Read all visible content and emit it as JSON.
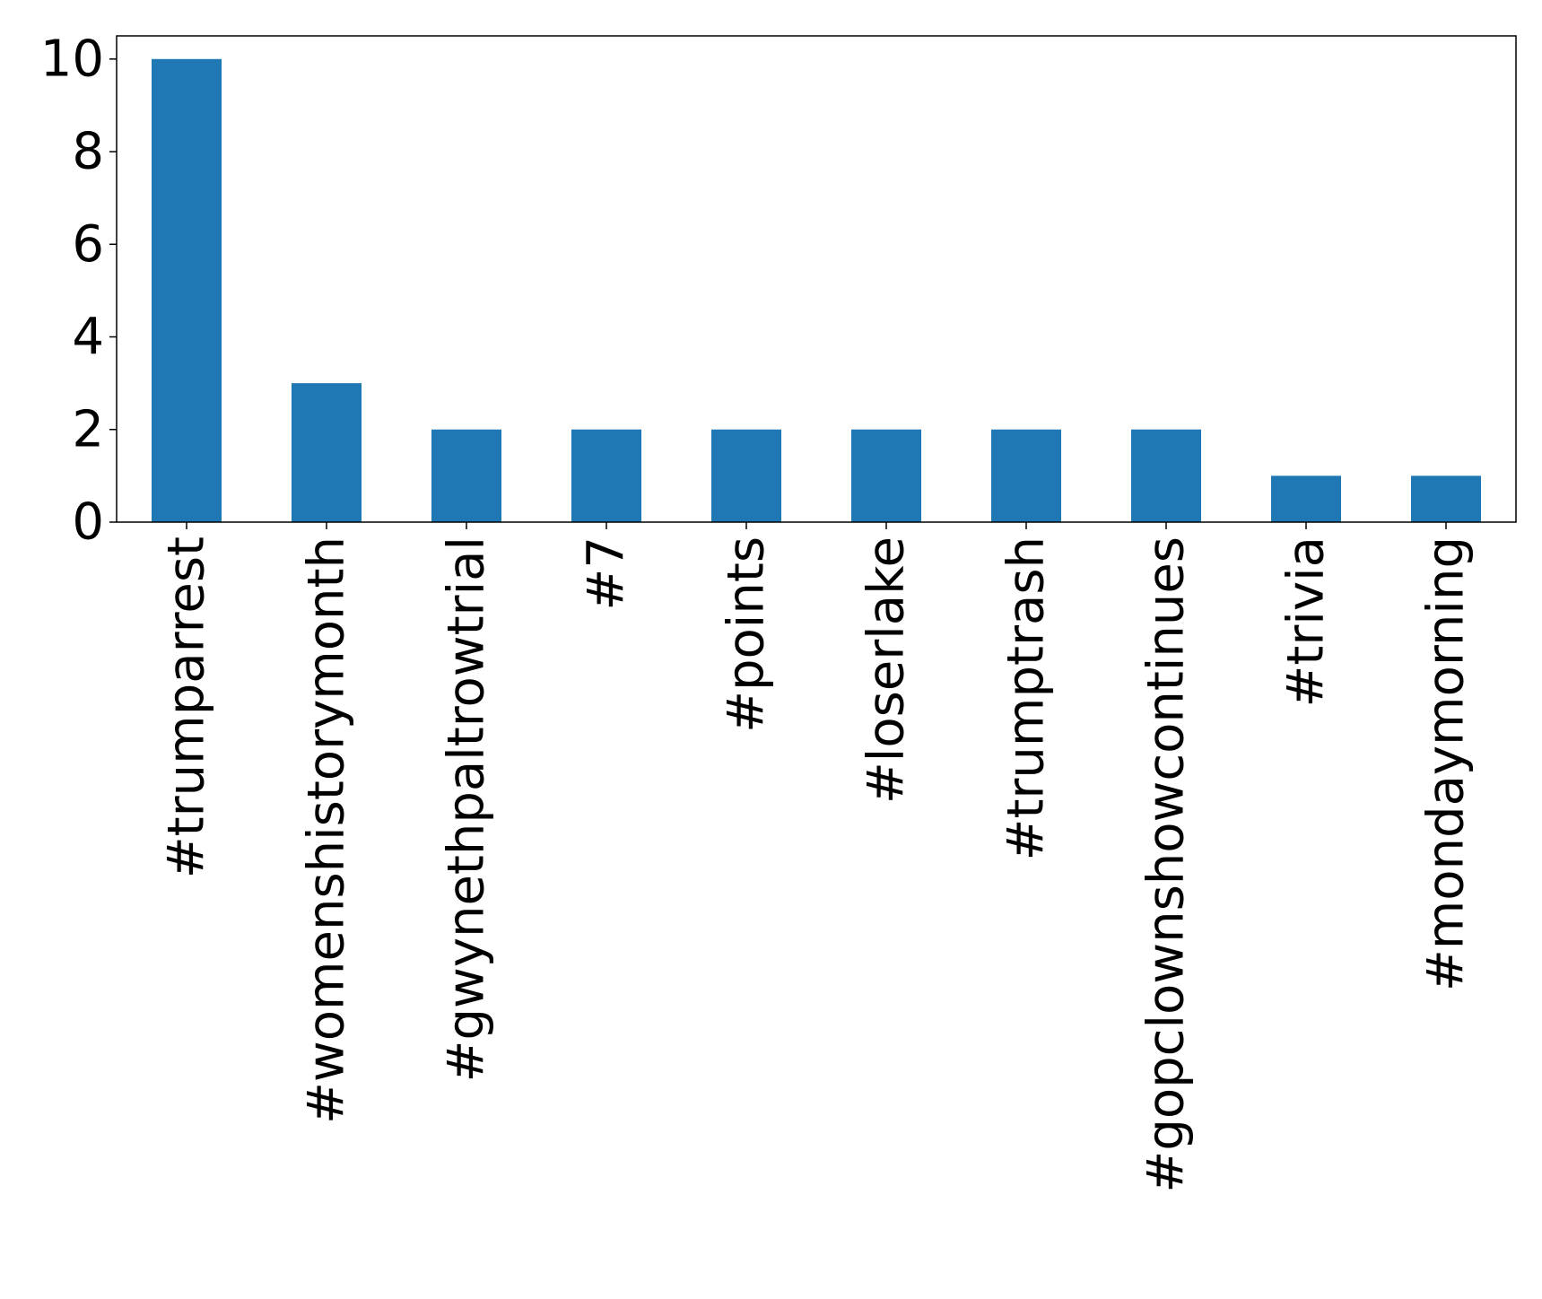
{
  "chart_data": {
    "type": "bar",
    "title": "",
    "xlabel": "",
    "ylabel": "",
    "categories": [
      "#trumparrest",
      "#womenshistorymonth",
      "#gwynethpaltrowtrial",
      "#7",
      "#points",
      "#loserlake",
      "#trumptrash",
      "#gopclownshowcontinues",
      "#trivia",
      "#mondaymorning"
    ],
    "values": [
      10,
      3,
      2,
      2,
      2,
      2,
      2,
      2,
      1,
      1
    ],
    "ylim": [
      0,
      10.5
    ],
    "yticks": [
      0,
      2,
      4,
      6,
      8,
      10
    ],
    "ytick_labels": [
      "0",
      "2",
      "4",
      "6",
      "8",
      "10"
    ],
    "grid": false,
    "legend": "none",
    "bar_color": "#1f77b4",
    "axis_color": "#000000"
  }
}
